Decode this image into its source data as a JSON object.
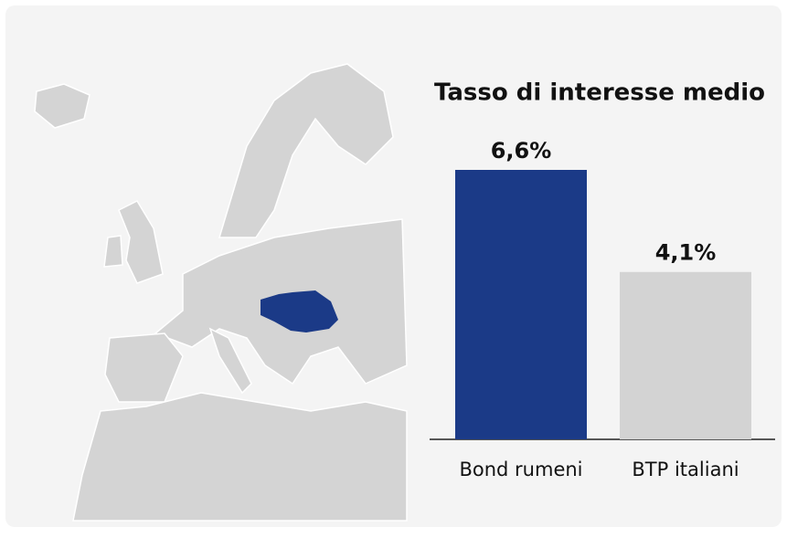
{
  "chart_data": {
    "type": "bar",
    "title": "Tasso di interesse medio",
    "categories": [
      "Bond rumeni",
      "BTP italiani"
    ],
    "values": [
      6.6,
      4.1
    ],
    "value_labels": [
      "6,6%",
      "4,1%"
    ],
    "colors": [
      "#1b3a87",
      "#d3d3d3"
    ]
  }
}
